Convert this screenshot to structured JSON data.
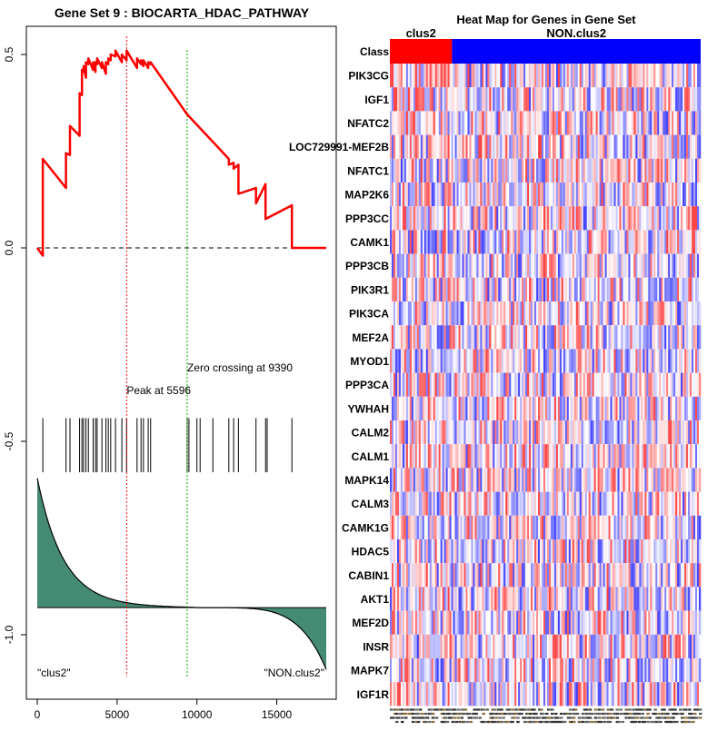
{
  "chart_data": [
    {
      "type": "line",
      "title": "Gene Set  9 : BIOCARTA_HDAC_PATHWAY",
      "xlabel": "",
      "ylabel": "",
      "xlim": [
        0,
        18100
      ],
      "ylim": [
        -1.12,
        0.56
      ],
      "x_ticks": [
        0,
        5000,
        10000,
        15000
      ],
      "x_tick_labels": [
        "0",
        "5000",
        "10000",
        "15000"
      ],
      "y_ticks": [
        0.5,
        0.0,
        -0.5,
        -1.0
      ],
      "y_tick_labels": [
        "0.5",
        "0.0",
        "-0.5",
        "-1.0"
      ],
      "grid": false,
      "running_enrichment_score": {
        "name": "Enrichment score",
        "color": "#ff0000",
        "x": [
          0,
          350,
          350,
          1800,
          1800,
          2050,
          2050,
          2650,
          2650,
          2800,
          2800,
          2900,
          2900,
          3050,
          3050,
          3200,
          3200,
          3500,
          3500,
          3650,
          3650,
          3750,
          3750,
          4050,
          4050,
          4300,
          4300,
          4450,
          4450,
          4600,
          4600,
          4900,
          4900,
          5300,
          5300,
          5596,
          5596,
          6250,
          6250,
          6500,
          6500,
          6650,
          6650,
          6950,
          6950,
          7100,
          7100,
          9390,
          12000,
          12000,
          12300,
          12300,
          12600,
          12600,
          13700,
          13700,
          14300,
          14300,
          15950,
          15950,
          18100
        ],
        "y": [
          0,
          -0.02,
          0.23,
          0.155,
          0.245,
          0.24,
          0.315,
          0.29,
          0.4,
          0.395,
          0.46,
          0.455,
          0.47,
          0.44,
          0.48,
          0.475,
          0.49,
          0.46,
          0.48,
          0.455,
          0.48,
          0.475,
          0.49,
          0.465,
          0.48,
          0.45,
          0.48,
          0.475,
          0.49,
          0.485,
          0.5,
          0.495,
          0.51,
          0.48,
          0.5,
          0.485,
          0.51,
          0.465,
          0.49,
          0.475,
          0.485,
          0.47,
          0.485,
          0.465,
          0.48,
          0.475,
          0.48,
          0.345,
          0.23,
          0.215,
          0.22,
          0.205,
          0.215,
          0.14,
          0.155,
          0.115,
          0.165,
          0.075,
          0.11,
          0,
          0
        ]
      },
      "baseline": {
        "y": 0,
        "style": "dashed",
        "color": "#333333"
      },
      "gene_hit_positions": [
        350,
        1800,
        2050,
        2650,
        2800,
        2900,
        3050,
        3200,
        3500,
        3650,
        3750,
        4050,
        4300,
        4450,
        4600,
        4900,
        5300,
        5596,
        6250,
        6500,
        6650,
        6950,
        7100,
        9390,
        9500,
        10000,
        10200,
        11000,
        12000,
        12300,
        12600,
        13700,
        14300,
        14400,
        15950
      ],
      "hit_ticks_range": [
        -0.44,
        -0.58
      ],
      "ranked_metric": {
        "fill_color": "#458b74",
        "y_top": -0.6,
        "y_zero": -0.93,
        "y_bottom": -1.09
      },
      "peak": {
        "x": 5596,
        "label": "Peak at 5596",
        "color": "#ff0000"
      },
      "zero_crossing": {
        "x": 9390,
        "label": "Zero crossing at 9390",
        "color": "#00aa00"
      },
      "annotations": {
        "left": "\"clus2\"",
        "right": "\"NON.clus2\""
      }
    },
    {
      "type": "heatmap",
      "title": "Heat Map for Genes in Gene Set",
      "class_row_label": "Class",
      "classes": [
        {
          "name": "clus2",
          "color": "#ff0000",
          "fraction": 0.2
        },
        {
          "name": "NON.clus2",
          "color": "#0000ff",
          "fraction": 0.8
        }
      ],
      "rows": [
        "PIK3CG",
        "IGF1",
        "NFATC2",
        "LOC729991-MEF2B",
        "NFATC1",
        "MAP2K6",
        "PPP3CC",
        "CAMK1",
        "PPP3CB",
        "PIK3R1",
        "PIK3CA",
        "MEF2A",
        "MYOD1",
        "PPP3CA",
        "YWHAH",
        "CALM2",
        "CALM1",
        "MAPK14",
        "CALM3",
        "CAMK1G",
        "HDAC5",
        "CABIN1",
        "AKT1",
        "MEF2D",
        "INSR",
        "MAPK7",
        "IGF1R"
      ],
      "color_scale": {
        "low": "#0000ff",
        "mid": "#ffffff",
        "high": "#ff0000"
      }
    }
  ]
}
